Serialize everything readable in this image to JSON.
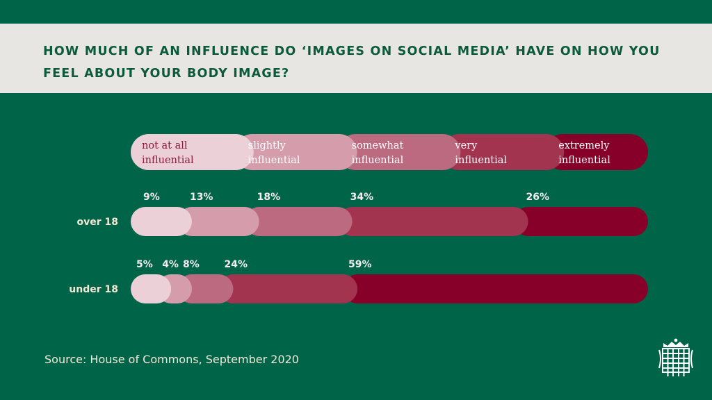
{
  "title": "HOW MUCH OF AN INFLUENCE DO ‘IMAGES ON SOCIAL MEDIA’ HAVE ON HOW YOU FEEL ABOUT YOUR BODY IMAGE?",
  "source": "Source: House of Commons, September 2020",
  "colors": {
    "background": "#006548",
    "title_band": "#e8e6e3",
    "categories": [
      "#ecd0d8",
      "#d59cab",
      "#bc6a80",
      "#a2344f",
      "#870029"
    ],
    "legend_text": [
      "#8a1a3a",
      "#ffffff",
      "#ffffff",
      "#ffffff",
      "#ffffff"
    ]
  },
  "chart_data": {
    "type": "bar",
    "stacked": true,
    "orientation": "horizontal",
    "categories": [
      [
        "not at all",
        "influential"
      ],
      [
        "slightly",
        "influential"
      ],
      [
        "somewhat",
        "influential"
      ],
      [
        "very",
        "influential"
      ],
      [
        "extremely",
        "influential"
      ]
    ],
    "series": [
      {
        "name": "over 18",
        "values": [
          9,
          13,
          18,
          34,
          26
        ],
        "labels": [
          "9%",
          "13%",
          "18%",
          "34%",
          "26%"
        ]
      },
      {
        "name": "under 18",
        "values": [
          5,
          4,
          8,
          24,
          59
        ],
        "labels": [
          "5%",
          "4%",
          "8%",
          "24%",
          "59%"
        ]
      }
    ],
    "unit": "%",
    "xlim": [
      0,
      100
    ]
  },
  "logo": {
    "icon": "portcullis-icon"
  }
}
